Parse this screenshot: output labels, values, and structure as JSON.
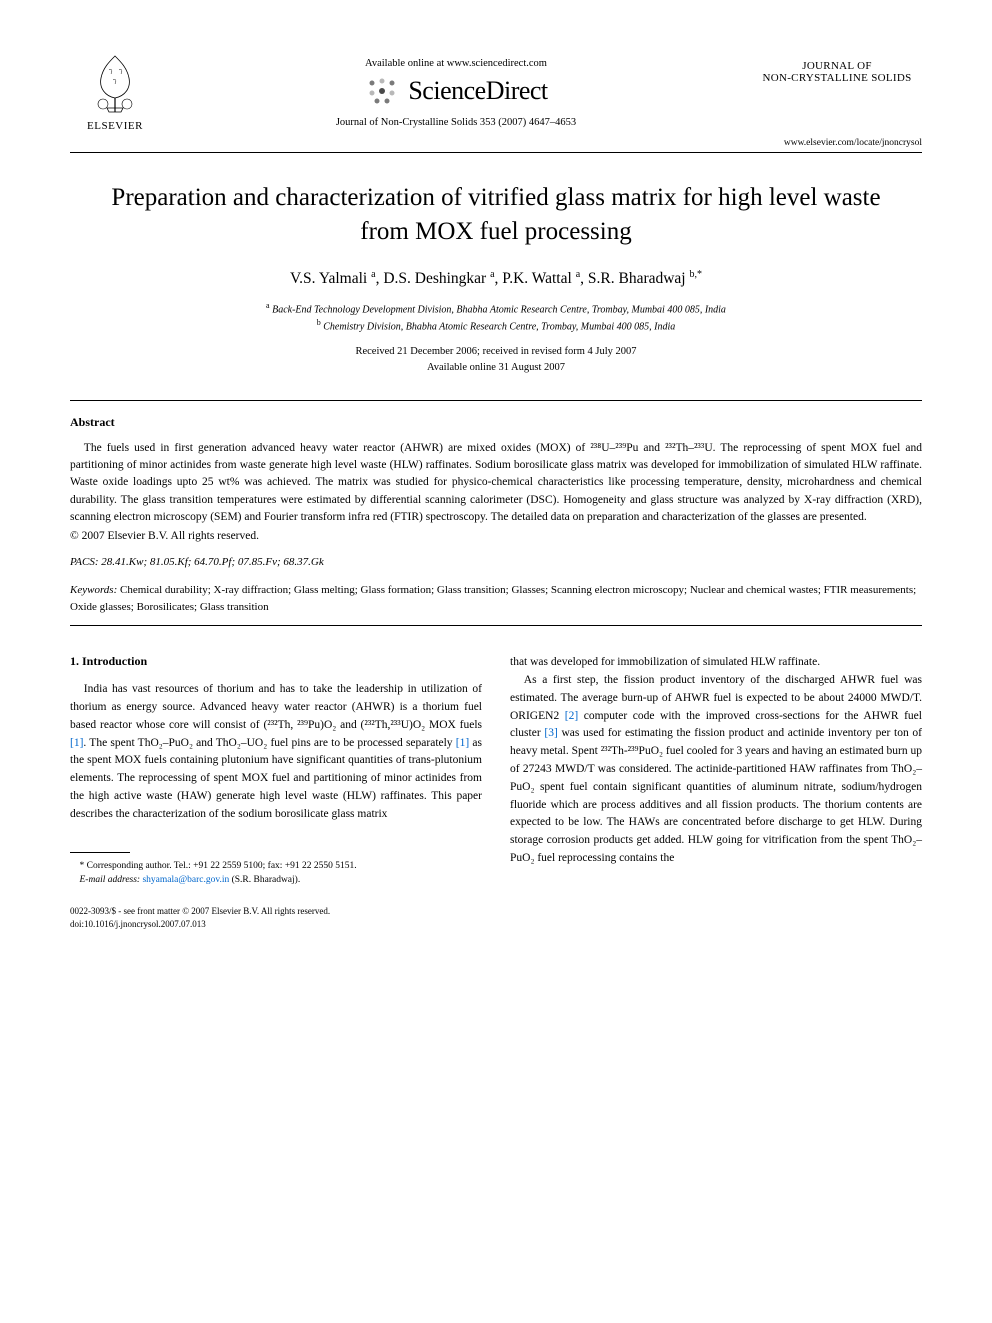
{
  "header": {
    "publisher_label": "ELSEVIER",
    "available_online": "Available online at www.sciencedirect.com",
    "sciencedirect": "ScienceDirect",
    "journal_citation": "Journal of Non-Crystalline Solids 353 (2007) 4647–4653",
    "journal_name_line1": "JOURNAL OF",
    "journal_name_line2": "NON-CRYSTALLINE SOLIDS",
    "journal_url": "www.elsevier.com/locate/jnoncrysol"
  },
  "article": {
    "title": "Preparation and characterization of vitrified glass matrix for high level waste from MOX fuel processing",
    "authors_html": "V.S. Yalmali <sup>a</sup>, D.S. Deshingkar <sup>a</sup>, P.K. Wattal <sup>a</sup>, S.R. Bharadwaj <sup>b,*</sup>",
    "affiliation_a": "Back-End Technology Development Division, Bhabha Atomic Research Centre, Trombay, Mumbai 400 085, India",
    "affiliation_b": "Chemistry Division, Bhabha Atomic Research Centre, Trombay, Mumbai 400 085, India",
    "received": "Received 21 December 2006; received in revised form 4 July 2007",
    "available_online": "Available online 31 August 2007"
  },
  "abstract": {
    "heading": "Abstract",
    "text": "The fuels used in first generation advanced heavy water reactor (AHWR) are mixed oxides (MOX) of ²³⁸U–²³⁹Pu and ²³²Th–²³³U. The reprocessing of spent MOX fuel and partitioning of minor actinides from waste generate high level waste (HLW) raffinates. Sodium borosilicate glass matrix was developed for immobilization of simulated HLW raffinate. Waste oxide loadings upto 25 wt% was achieved. The matrix was studied for physico-chemical characteristics like processing temperature, density, microhardness and chemical durability. The glass transition temperatures were estimated by differential scanning calorimeter (DSC). Homogeneity and glass structure was analyzed by X-ray diffraction (XRD), scanning electron microscopy (SEM) and Fourier transform infra red (FTIR) spectroscopy. The detailed data on preparation and characterization of the glasses are presented.",
    "copyright": "© 2007 Elsevier B.V. All rights reserved."
  },
  "pacs": {
    "label": "PACS:",
    "values": "28.41.Kw; 81.05.Kf; 64.70.Pf; 07.85.Fv; 68.37.Gk"
  },
  "keywords": {
    "label": "Keywords:",
    "values": "Chemical durability; X-ray diffraction; Glass melting; Glass formation; Glass transition; Glasses; Scanning electron microscopy; Nuclear and chemical wastes; FTIR measurements; Oxide glasses; Borosilicates; Glass transition"
  },
  "body": {
    "section_heading": "1. Introduction",
    "col1_p1": "India has vast resources of thorium and has to take the leadership in utilization of thorium as energy source. Advanced heavy water reactor (AHWR) is a thorium fuel based reactor whose core will consist of (²³²Th, ²³⁹Pu)O₂ and (²³²Th,²³³U)O₂ MOX fuels [1]. The spent ThO₂–PuO₂ and ThO₂–UO₂ fuel pins are to be processed separately [1] as the spent MOX fuels containing plutonium have significant quantities of trans-plutonium elements. The reprocessing of spent MOX fuel and partitioning of minor actinides from the high active waste (HAW) generate high level waste (HLW) raffinates. This paper describes the characterization of the sodium borosilicate glass matrix",
    "col2_p1": "that was developed for immobilization of simulated HLW raffinate.",
    "col2_p2": "As a first step, the fission product inventory of the discharged AHWR fuel was estimated. The average burn-up of AHWR fuel is expected to be about 24000 MWD/T. ORIGEN2 [2] computer code with the improved cross-sections for the AHWR fuel cluster [3] was used for estimating the fission product and actinide inventory per ton of heavy metal. Spent ²³²Th-²³⁹PuO₂ fuel cooled for 3 years and having an estimated burn up of 27243 MWD/T was considered. The actinide-partitioned HAW raffinates from ThO₂–PuO₂ spent fuel contain significant quantities of aluminum nitrate, sodium/hydrogen fluoride which are process additives and all fission products. The thorium contents are expected to be low. The HAWs are concentrated before discharge to get HLW. During storage corrosion products get added. HLW going for vitrification from the spent ThO₂–PuO₂ fuel reprocessing contains the"
  },
  "footnote": {
    "corresponding": "* Corresponding author. Tel.: +91 22 2559 5100; fax: +91 22 2550 5151.",
    "email_label": "E-mail address:",
    "email": "shyamala@barc.gov.in",
    "email_name": "(S.R. Bharadwaj)."
  },
  "footer": {
    "line1": "0022-3093/$ - see front matter © 2007 Elsevier B.V. All rights reserved.",
    "line2": "doi:10.1016/j.jnoncrysol.2007.07.013"
  },
  "colors": {
    "link": "#0066cc",
    "text": "#000000",
    "bg": "#ffffff"
  }
}
